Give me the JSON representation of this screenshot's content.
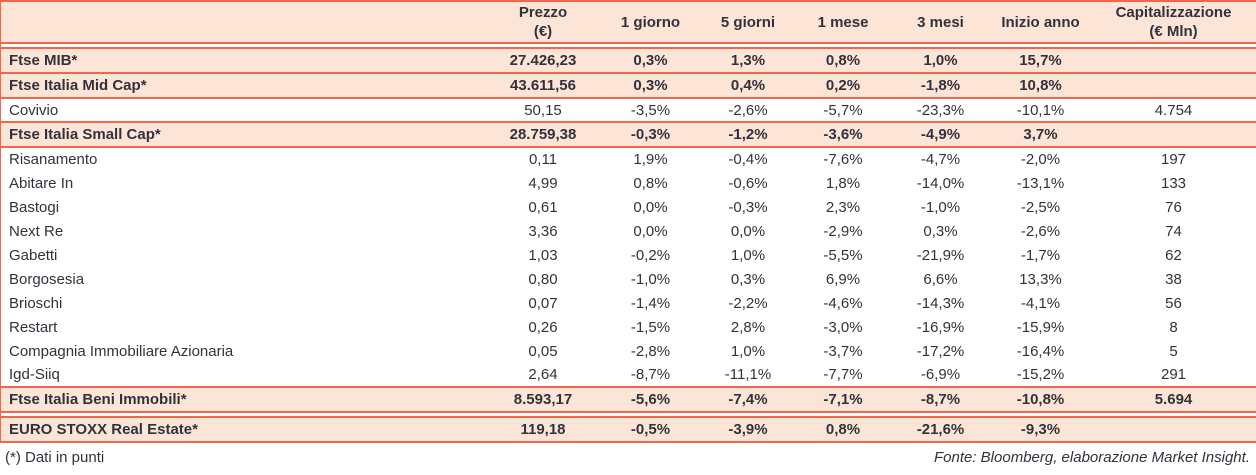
{
  "colors": {
    "accent": "#f1664d",
    "row_highlight": "#fce5d6",
    "text": "#32323c"
  },
  "table": {
    "columns": [
      {
        "key": "name",
        "label": ""
      },
      {
        "key": "prezzo",
        "label": "Prezzo\n(€)"
      },
      {
        "key": "d1",
        "label": "1 giorno"
      },
      {
        "key": "d5",
        "label": "5 giorni"
      },
      {
        "key": "m1",
        "label": "1 mese"
      },
      {
        "key": "m3",
        "label": "3 mesi"
      },
      {
        "key": "ytd",
        "label": "Inizio anno"
      },
      {
        "key": "cap",
        "label": "Capitalizzazione\n(€ Mln)"
      }
    ],
    "rows": [
      {
        "type": "index",
        "spacer_before": true,
        "name": "Ftse MIB*",
        "prezzo": "27.426,23",
        "d1": "0,3%",
        "d5": "1,3%",
        "m1": "0,8%",
        "m3": "1,0%",
        "ytd": "15,7%",
        "cap": ""
      },
      {
        "type": "index",
        "spacer_before": false,
        "name": "Ftse Italia Mid Cap*",
        "prezzo": "43.611,56",
        "d1": "0,3%",
        "d5": "0,4%",
        "m1": "0,2%",
        "m3": "-1,8%",
        "ytd": "10,8%",
        "cap": ""
      },
      {
        "type": "stock",
        "spacer_before": false,
        "name": "Covivio",
        "prezzo": "50,15",
        "d1": "-3,5%",
        "d5": "-2,6%",
        "m1": "-5,7%",
        "m3": "-23,3%",
        "ytd": "-10,1%",
        "cap": "4.754"
      },
      {
        "type": "index",
        "spacer_before": false,
        "name": "Ftse Italia Small Cap*",
        "prezzo": "28.759,38",
        "d1": "-0,3%",
        "d5": "-1,2%",
        "m1": "-3,6%",
        "m3": "-4,9%",
        "ytd": "3,7%",
        "cap": ""
      },
      {
        "type": "stock",
        "spacer_before": false,
        "name": "Risanamento",
        "prezzo": "0,11",
        "d1": "1,9%",
        "d5": "-0,4%",
        "m1": "-7,6%",
        "m3": "-4,7%",
        "ytd": "-2,0%",
        "cap": "197"
      },
      {
        "type": "stock",
        "spacer_before": false,
        "name": "Abitare In",
        "prezzo": "4,99",
        "d1": "0,8%",
        "d5": "-0,6%",
        "m1": "1,8%",
        "m3": "-14,0%",
        "ytd": "-13,1%",
        "cap": "133"
      },
      {
        "type": "stock",
        "spacer_before": false,
        "name": "Bastogi",
        "prezzo": "0,61",
        "d1": "0,0%",
        "d5": "-0,3%",
        "m1": "2,3%",
        "m3": "-1,0%",
        "ytd": "-2,5%",
        "cap": "76"
      },
      {
        "type": "stock",
        "spacer_before": false,
        "name": "Next Re",
        "prezzo": "3,36",
        "d1": "0,0%",
        "d5": "0,0%",
        "m1": "-2,9%",
        "m3": "0,3%",
        "ytd": "-2,6%",
        "cap": "74"
      },
      {
        "type": "stock",
        "spacer_before": false,
        "name": "Gabetti",
        "prezzo": "1,03",
        "d1": "-0,2%",
        "d5": "1,0%",
        "m1": "-5,5%",
        "m3": "-21,9%",
        "ytd": "-1,7%",
        "cap": "62"
      },
      {
        "type": "stock",
        "spacer_before": false,
        "name": "Borgosesia",
        "prezzo": "0,80",
        "d1": "-1,0%",
        "d5": "0,3%",
        "m1": "6,9%",
        "m3": "6,6%",
        "ytd": "13,3%",
        "cap": "38"
      },
      {
        "type": "stock",
        "spacer_before": false,
        "name": "Brioschi",
        "prezzo": "0,07",
        "d1": "-1,4%",
        "d5": "-2,2%",
        "m1": "-4,6%",
        "m3": "-14,3%",
        "ytd": "-4,1%",
        "cap": "56"
      },
      {
        "type": "stock",
        "spacer_before": false,
        "name": "Restart",
        "prezzo": "0,26",
        "d1": "-1,5%",
        "d5": "2,8%",
        "m1": "-3,0%",
        "m3": "-16,9%",
        "ytd": "-15,9%",
        "cap": "8"
      },
      {
        "type": "stock",
        "spacer_before": false,
        "name": "Compagnia Immobiliare Azionaria",
        "prezzo": "0,05",
        "d1": "-2,8%",
        "d5": "1,0%",
        "m1": "-3,7%",
        "m3": "-17,2%",
        "ytd": "-16,4%",
        "cap": "5"
      },
      {
        "type": "stock",
        "spacer_before": false,
        "name": "Igd-Siiq",
        "prezzo": "2,64",
        "d1": "-8,7%",
        "d5": "-11,1%",
        "m1": "-7,7%",
        "m3": "-6,9%",
        "ytd": "-15,2%",
        "cap": "291"
      },
      {
        "type": "index",
        "spacer_before": false,
        "name": "Ftse Italia Beni Immobili*",
        "prezzo": "8.593,17",
        "d1": "-5,6%",
        "d5": "-7,4%",
        "m1": "-7,1%",
        "m3": "-8,7%",
        "ytd": "-10,8%",
        "cap": "5.694"
      },
      {
        "type": "index",
        "spacer_before": true,
        "name": "EURO STOXX Real Estate*",
        "prezzo": "119,18",
        "d1": "-0,5%",
        "d5": "-3,9%",
        "m1": "0,8%",
        "m3": "-21,6%",
        "ytd": "-9,3%",
        "cap": ""
      }
    ]
  },
  "footer": {
    "footnote": "(*) Dati in punti",
    "source": "Fonte: Bloomberg, elaborazione Market Insight."
  }
}
